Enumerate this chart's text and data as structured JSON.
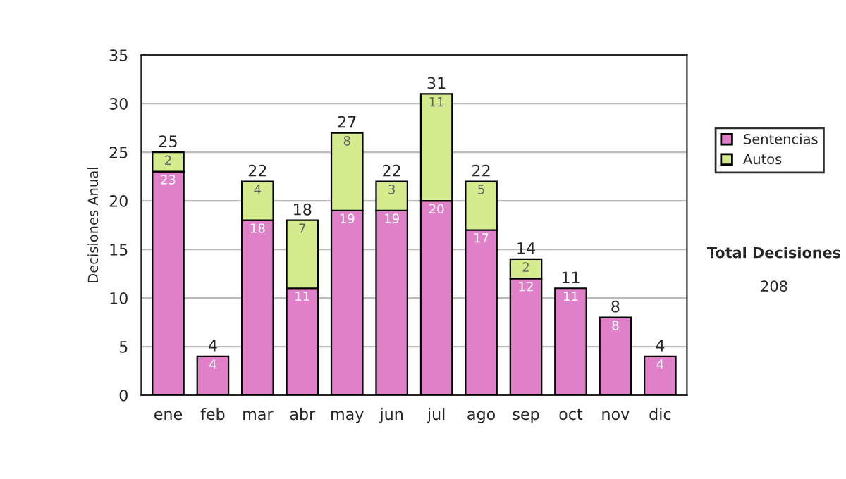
{
  "chart_data": {
    "type": "bar",
    "stacked": true,
    "ylabel": "Decisiones Anual",
    "categories": [
      "ene",
      "feb",
      "mar",
      "abr",
      "may",
      "jun",
      "jul",
      "ago",
      "sep",
      "oct",
      "nov",
      "dic"
    ],
    "series": [
      {
        "name": "Sentencias",
        "color": "#df80c8",
        "values": [
          23,
          4,
          18,
          11,
          19,
          19,
          20,
          17,
          12,
          11,
          8,
          4
        ],
        "value_labels": [
          "23",
          "4",
          "18",
          "11",
          "19",
          "19",
          "20",
          "17",
          "12",
          "11",
          "8",
          "4"
        ]
      },
      {
        "name": "Autos",
        "color": "#d5ec8e",
        "values": [
          2,
          null,
          4,
          7,
          8,
          3,
          11,
          5,
          2,
          null,
          null,
          null
        ],
        "value_labels": [
          "2",
          null,
          "4",
          "7",
          "8",
          "3",
          "11",
          "5",
          "2",
          null,
          null,
          null
        ]
      }
    ],
    "totals": [
      "25",
      "4",
      "22",
      "18",
      "27",
      "22",
      "31",
      "22",
      "14",
      "11",
      "8",
      "4"
    ],
    "ylim": [
      0,
      35
    ],
    "yticks": [
      0,
      5,
      10,
      15,
      20,
      25,
      30,
      35
    ],
    "grid": "y",
    "legend": "right",
    "annotations": [
      "Total Decisiones",
      "208"
    ]
  }
}
